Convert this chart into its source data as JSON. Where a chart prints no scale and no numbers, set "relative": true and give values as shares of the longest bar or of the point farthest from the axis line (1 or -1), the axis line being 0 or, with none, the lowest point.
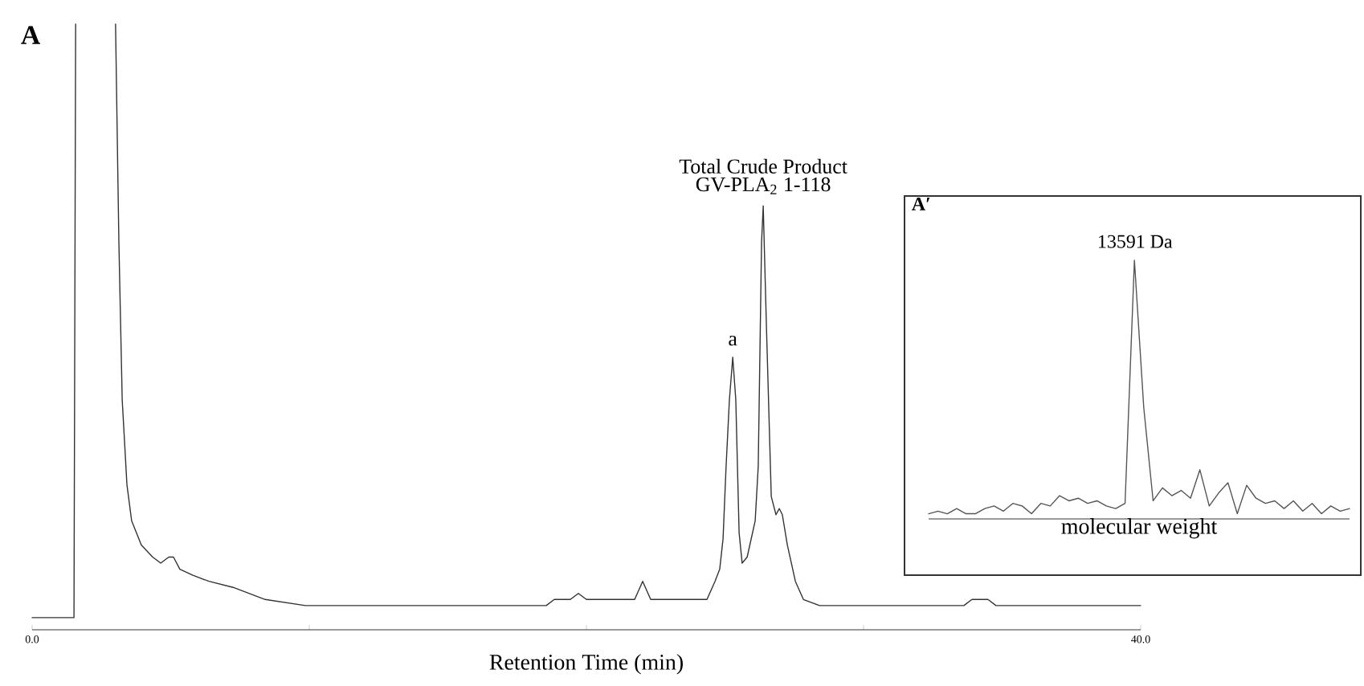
{
  "chart_data": [
    {
      "type": "line",
      "xlabel": "Retention Time (min)",
      "relative": true,
      "color": "#333333",
      "xlim": [
        0,
        40
      ],
      "xticks": [
        {
          "value": 0,
          "label": "0.0"
        },
        {
          "value": 10,
          "label": null
        },
        {
          "value": 20,
          "label": null
        },
        {
          "value": 30,
          "label": null
        },
        {
          "value": 40,
          "label": "40.0"
        }
      ],
      "x": [
        0,
        1.51,
        1.57,
        2.3,
        3.01,
        3.13,
        3.25,
        3.42,
        3.59,
        3.94,
        4.35,
        4.64,
        4.93,
        5.1,
        5.33,
        5.8,
        6.38,
        7.25,
        8.41,
        9.86,
        13.33,
        17.39,
        17.97,
        18.55,
        18.84,
        19.13,
        19.42,
        19.71,
        20.0,
        20.87,
        21.45,
        21.74,
        22.03,
        22.32,
        22.61,
        23.77,
        24.35,
        24.64,
        24.81,
        24.93,
        25.04,
        25.16,
        25.28,
        25.39,
        25.51,
        25.62,
        25.8,
        26.09,
        26.2,
        26.32,
        26.38,
        26.49,
        26.67,
        26.84,
        26.96,
        27.07,
        27.25,
        27.54,
        27.83,
        28.41,
        30.14,
        31.3,
        32.46,
        33.62,
        33.91,
        34.49,
        34.78,
        40.0
      ],
      "values": [
        0.02,
        0.02,
        1.0,
        null,
        1.0,
        0.64,
        0.38,
        0.24,
        0.18,
        0.14,
        0.12,
        0.11,
        0.12,
        0.12,
        0.1,
        0.09,
        0.08,
        0.07,
        0.05,
        0.04,
        0.04,
        0.04,
        0.04,
        0.04,
        0.05,
        0.05,
        0.05,
        0.06,
        0.05,
        0.05,
        0.05,
        0.05,
        0.08,
        0.05,
        0.05,
        0.05,
        0.05,
        0.08,
        0.1,
        0.15,
        0.27,
        0.38,
        0.45,
        0.38,
        0.16,
        0.11,
        0.12,
        0.18,
        0.27,
        0.64,
        0.7,
        0.51,
        0.22,
        0.19,
        0.2,
        0.19,
        0.14,
        0.08,
        0.05,
        0.04,
        0.04,
        0.04,
        0.04,
        0.04,
        0.05,
        0.05,
        0.04,
        0.04
      ],
      "annotations": [
        "A",
        "Total Crude Product",
        {
          "text": "GV-PLA$_{2}$ 1-118",
          "x": 26.38,
          "y": 0.7
        },
        {
          "text": "a",
          "x": 25.28,
          "y": 0.45
        }
      ]
    },
    {
      "type": "line",
      "xlabel": "molecular weight",
      "relative": true,
      "color": "#555555",
      "categories": [
        null,
        null,
        null,
        null,
        null,
        null,
        null,
        null,
        null,
        null,
        null,
        null,
        null,
        null,
        null,
        null,
        null,
        null,
        null,
        null,
        null,
        null,
        null,
        null,
        null,
        null,
        null,
        null,
        null,
        null,
        null,
        null,
        null,
        null,
        null,
        null,
        null,
        null,
        null,
        null,
        null,
        null,
        null,
        null,
        null,
        null
      ],
      "values": [
        0.02,
        0.03,
        0.02,
        0.04,
        0.02,
        0.02,
        0.04,
        0.05,
        0.03,
        0.06,
        0.05,
        0.02,
        0.06,
        0.05,
        0.09,
        0.07,
        0.08,
        0.06,
        0.07,
        0.05,
        0.04,
        0.06,
        1.0,
        0.43,
        0.07,
        0.12,
        0.09,
        0.11,
        0.08,
        0.19,
        0.05,
        0.1,
        0.14,
        0.02,
        0.13,
        0.08,
        0.06,
        0.07,
        0.04,
        0.07,
        0.03,
        0.06,
        0.02,
        0.05,
        0.03,
        0.04
      ],
      "annotations": [
        "A′",
        "13591 Da"
      ]
    }
  ]
}
